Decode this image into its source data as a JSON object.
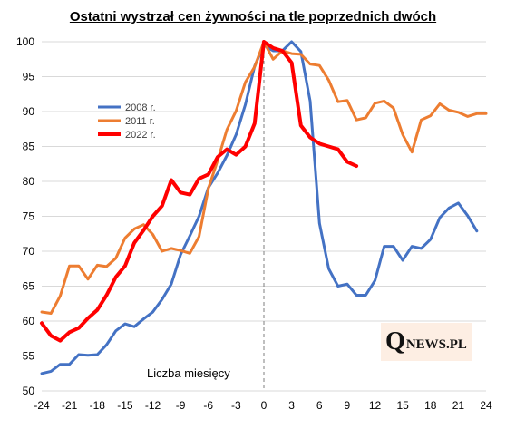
{
  "chart_data": {
    "type": "line",
    "title": "Ostatni wystrzał cen żywności na tle poprzednich dwóch",
    "xlabel": "Liczba miesięcy",
    "ylabel": "",
    "xlim": [
      -24,
      24
    ],
    "ylim": [
      50,
      100
    ],
    "x_ticks": [
      -24,
      -21,
      -18,
      -15,
      -12,
      -9,
      -6,
      -3,
      0,
      3,
      6,
      9,
      12,
      15,
      18,
      21,
      24
    ],
    "y_ticks": [
      50,
      55,
      60,
      65,
      70,
      75,
      80,
      85,
      90,
      95,
      100
    ],
    "grid": "horizontal",
    "legend_position": "upper-left",
    "reference_line_x": 0,
    "series": [
      {
        "name": "2008 r.",
        "color": "#4472c4",
        "x": [
          -24,
          -23,
          -22,
          -21,
          -20,
          -19,
          -18,
          -17,
          -16,
          -15,
          -14,
          -13,
          -12,
          -11,
          -10,
          -9,
          -8,
          -7,
          -6,
          -5,
          -4,
          -3,
          -2,
          -1,
          0,
          1,
          2,
          3,
          4,
          5,
          6,
          7,
          8,
          9,
          10,
          11,
          12,
          13,
          14,
          15,
          16,
          17,
          18,
          19,
          20,
          21,
          22,
          23,
          24
        ],
        "y": [
          52.5,
          52.8,
          53.8,
          53.8,
          55.2,
          55.1,
          55.2,
          56.6,
          58.6,
          59.6,
          59.2,
          60.3,
          61.3,
          63.1,
          65.3,
          69.5,
          72.2,
          75.0,
          79.1,
          81.2,
          83.7,
          86.7,
          91.0,
          96.5,
          99.5,
          98.7,
          98.7,
          100,
          98.6,
          91.5,
          74.0,
          67.5,
          65.0,
          65.3,
          63.7,
          63.7,
          65.8,
          70.7,
          70.7,
          68.7,
          70.7,
          70.4,
          71.7,
          74.8,
          76.2,
          76.9,
          75.1,
          72.9,
          null
        ]
      },
      {
        "name": "2011 r.",
        "color": "#ed7d31",
        "x": [
          -24,
          -23,
          -22,
          -21,
          -20,
          -19,
          -18,
          -17,
          -16,
          -15,
          -14,
          -13,
          -12,
          -11,
          -10,
          -9,
          -8,
          -7,
          -6,
          -5,
          -4,
          -3,
          -2,
          -1,
          0,
          1,
          2,
          3,
          4,
          5,
          6,
          7,
          8,
          9,
          10,
          11,
          12,
          13,
          14,
          15,
          16,
          17,
          18,
          19,
          20,
          21,
          22,
          23,
          24
        ],
        "y": [
          61.3,
          61.1,
          63.6,
          67.9,
          67.9,
          66.0,
          68.0,
          67.8,
          69.0,
          71.9,
          73.2,
          73.8,
          72.4,
          70.0,
          70.4,
          70.1,
          69.7,
          72.1,
          79.0,
          83.0,
          87.4,
          90.1,
          94.2,
          96.4,
          100,
          97.5,
          98.7,
          98.3,
          98.2,
          96.8,
          96.6,
          94.5,
          91.4,
          91.6,
          88.8,
          89.1,
          91.2,
          91.5,
          90.5,
          86.7,
          84.2,
          88.8,
          89.4,
          91.1,
          90.2,
          89.9,
          89.3,
          89.7,
          89.7
        ]
      },
      {
        "name": "2022 r.",
        "color": "#ff0000",
        "x": [
          -24,
          -23,
          -22,
          -21,
          -20,
          -19,
          -18,
          -17,
          -16,
          -15,
          -14,
          -13,
          -12,
          -11,
          -10,
          -9,
          -8,
          -7,
          -6,
          -5,
          -4,
          -3,
          -2,
          -1,
          0,
          1,
          2,
          3,
          4,
          5,
          6,
          7,
          8,
          9,
          10
        ],
        "y": [
          59.7,
          57.9,
          57.2,
          58.4,
          59.0,
          60.4,
          61.6,
          63.7,
          66.3,
          67.9,
          71.2,
          73.0,
          75.0,
          76.5,
          80.2,
          78.4,
          78.1,
          80.4,
          81.0,
          83.5,
          84.6,
          83.8,
          85.0,
          88.3,
          100,
          99.1,
          98.7,
          97.0,
          88.0,
          86.3,
          85.4,
          85.0,
          84.6,
          82.8,
          82.2
        ]
      }
    ]
  },
  "watermark": {
    "text_big": "Q",
    "text_small": "NEWS.PL"
  }
}
